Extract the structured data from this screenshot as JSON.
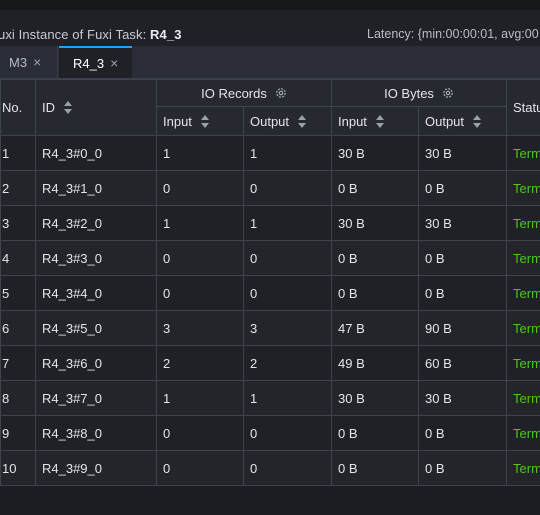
{
  "title": {
    "prefix": "uxi Instance of Fuxi Task",
    "sep": ":",
    "task": "R4_3"
  },
  "latency": "Latency: {min:00:00:01, avg:00",
  "tabs": [
    {
      "label": "M3",
      "close": "×",
      "active": false
    },
    {
      "label": "R4_3",
      "close": "×",
      "active": true
    }
  ],
  "columns": {
    "no": "No.",
    "id": "ID",
    "io_records": "IO Records",
    "io_bytes": "IO Bytes",
    "status": "Status",
    "input": "Input",
    "output": "Output"
  },
  "rows": [
    {
      "no": "1",
      "id": "R4_3#0_0",
      "rec_in": "1",
      "rec_out": "1",
      "bytes_in": "30 B",
      "bytes_out": "30 B",
      "status": "Terminated"
    },
    {
      "no": "2",
      "id": "R4_3#1_0",
      "rec_in": "0",
      "rec_out": "0",
      "bytes_in": "0 B",
      "bytes_out": "0 B",
      "status": "Terminated"
    },
    {
      "no": "3",
      "id": "R4_3#2_0",
      "rec_in": "1",
      "rec_out": "1",
      "bytes_in": "30 B",
      "bytes_out": "30 B",
      "status": "Terminated"
    },
    {
      "no": "4",
      "id": "R4_3#3_0",
      "rec_in": "0",
      "rec_out": "0",
      "bytes_in": "0 B",
      "bytes_out": "0 B",
      "status": "Terminated"
    },
    {
      "no": "5",
      "id": "R4_3#4_0",
      "rec_in": "0",
      "rec_out": "0",
      "bytes_in": "0 B",
      "bytes_out": "0 B",
      "status": "Terminated"
    },
    {
      "no": "6",
      "id": "R4_3#5_0",
      "rec_in": "3",
      "rec_out": "3",
      "bytes_in": "47 B",
      "bytes_out": "90 B",
      "status": "Terminated"
    },
    {
      "no": "7",
      "id": "R4_3#6_0",
      "rec_in": "2",
      "rec_out": "2",
      "bytes_in": "49 B",
      "bytes_out": "60 B",
      "status": "Terminated"
    },
    {
      "no": "8",
      "id": "R4_3#7_0",
      "rec_in": "1",
      "rec_out": "1",
      "bytes_in": "30 B",
      "bytes_out": "30 B",
      "status": "Terminated"
    },
    {
      "no": "9",
      "id": "R4_3#8_0",
      "rec_in": "0",
      "rec_out": "0",
      "bytes_in": "0 B",
      "bytes_out": "0 B",
      "status": "Terminated"
    },
    {
      "no": "10",
      "id": "R4_3#9_0",
      "rec_in": "0",
      "rec_out": "0",
      "bytes_in": "0 B",
      "bytes_out": "0 B",
      "status": "Terminated"
    }
  ],
  "colors": {
    "accent": "#1fa1ff",
    "status_ok": "#52c41a",
    "background": "#1b1d22"
  },
  "icons": {
    "sort": "sort-icon",
    "settings": "gear-icon",
    "close": "close-icon"
  }
}
